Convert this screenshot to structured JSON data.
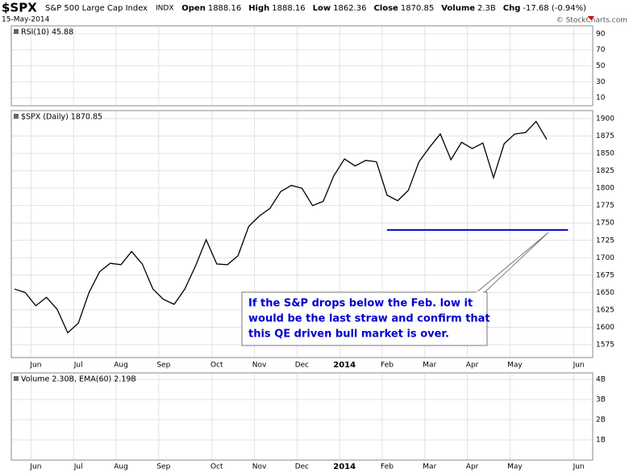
{
  "header": {
    "symbol": "$SPX",
    "name": "S&P 500 Large Cap Index",
    "exchange": "INDX",
    "date": "15-May-2014",
    "credit": "© StockCharts.com",
    "quote": [
      "Open",
      "1888.16",
      "High",
      "1888.16",
      "Low",
      "1862.36",
      "Close",
      "1870.85",
      "Volume",
      "2.3B",
      "Chg",
      "-17.68 (-0.94%)"
    ]
  },
  "chart_data": [
    {
      "type": "indicator",
      "legend": "RSI(10) 45.88",
      "ylim": [
        0,
        100
      ],
      "yticks": [
        10,
        30,
        50,
        70,
        90
      ],
      "grid": true
    },
    {
      "type": "line",
      "legend": "$SPX (Daily) 1870.85",
      "color": "#000000",
      "categories": [
        null,
        null,
        "Jun",
        null,
        null,
        null,
        "Jul",
        null,
        null,
        null,
        "Aug",
        null,
        null,
        null,
        "Sep",
        null,
        null,
        null,
        null,
        "Oct",
        null,
        null,
        null,
        "Nov",
        null,
        null,
        null,
        "Dec",
        null,
        null,
        null,
        "2014",
        null,
        null,
        null,
        "Feb",
        null,
        null,
        null,
        "Mar",
        null,
        null,
        null,
        "Apr",
        null,
        null,
        null,
        "May",
        null,
        null,
        null,
        null,
        null,
        "Jun"
      ],
      "series": [
        {
          "name": "$SPX",
          "color": "#000000",
          "values": [
            1655,
            1650,
            1631,
            1643,
            1626,
            1592,
            1606,
            1650,
            1680,
            1692,
            1690,
            1709,
            1691,
            1655,
            1640,
            1633,
            1655,
            1688,
            1726,
            1691,
            1690,
            1703,
            1745,
            1760,
            1771,
            1795,
            1804,
            1800,
            1775,
            1781,
            1818,
            1842,
            1832,
            1840,
            1838,
            1790,
            1782,
            1797,
            1838,
            1859,
            1878,
            1841,
            1866,
            1857,
            1865,
            1815,
            1864,
            1878,
            1880,
            1896,
            1870,
            null,
            null,
            null
          ]
        }
      ],
      "ylim": [
        1556.4,
        1911.6
      ],
      "yticks": [
        1575,
        1600,
        1625,
        1650,
        1675,
        1700,
        1725,
        1750,
        1775,
        1800,
        1825,
        1850,
        1875,
        1900
      ],
      "grid": true,
      "support_line": {
        "value": 1740,
        "from": 35,
        "to": 52,
        "color": "#0000cc"
      },
      "annotation": [
        "If the S&P drops below the Feb. low it",
        "would be the last straw and confirm that",
        "this QE driven bull market is over."
      ]
    },
    {
      "type": "indicator",
      "legend": "Volume 2.30B, EMA(60) 2.19B",
      "ylim": [
        0,
        4.32
      ],
      "yticks": [
        {
          "value": 1,
          "label": "1B"
        },
        {
          "value": 2,
          "label": "2B"
        },
        {
          "value": 3,
          "label": "3B"
        },
        {
          "value": 4,
          "label": "4B"
        }
      ],
      "grid": true
    }
  ]
}
